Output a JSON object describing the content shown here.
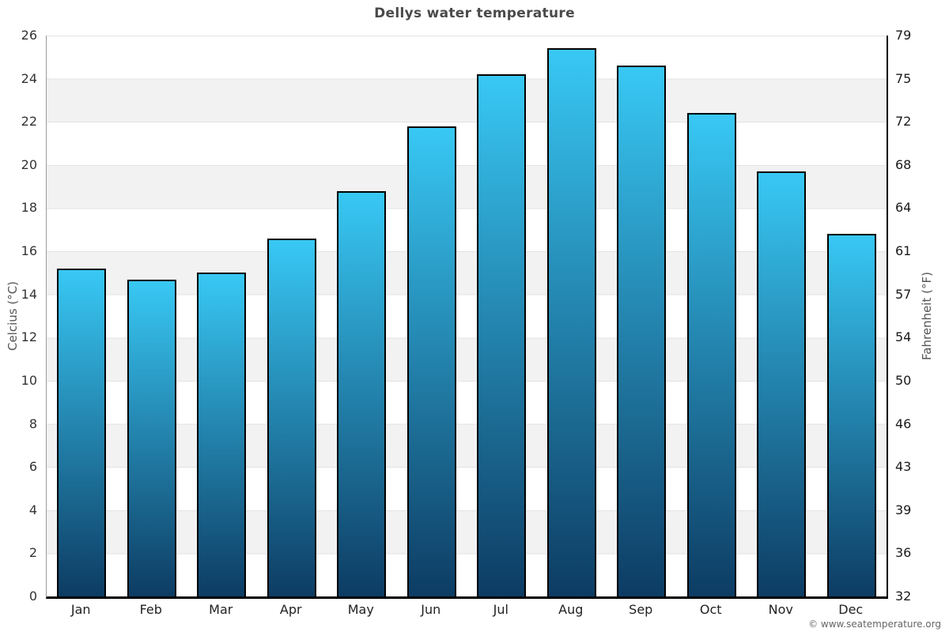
{
  "title": "Dellys water temperature",
  "footer": {
    "credit": "© www.seatemperature.org"
  },
  "chart_data": {
    "type": "bar",
    "title": "Dellys water temperature",
    "categories": [
      "Jan",
      "Feb",
      "Mar",
      "Apr",
      "May",
      "Jun",
      "Jul",
      "Aug",
      "Sep",
      "Oct",
      "Nov",
      "Dec"
    ],
    "values": [
      15.2,
      14.7,
      15.0,
      16.6,
      18.8,
      21.8,
      24.2,
      25.4,
      24.6,
      22.4,
      19.7,
      16.8
    ],
    "xlabel": "",
    "ylabel": "Celcius (°C)",
    "ylabel_right": "Fahrenheit (°F)",
    "ylim": [
      0,
      26
    ],
    "yticks_left": [
      0,
      2,
      4,
      6,
      8,
      10,
      12,
      14,
      16,
      18,
      20,
      22,
      24,
      26
    ],
    "yticks_right": [
      32,
      36,
      39,
      43,
      46,
      50,
      54,
      57,
      61,
      64,
      68,
      72,
      75,
      79
    ],
    "legend": "none",
    "grid": "alternating horizontal bands every 2 degrees C with light gridlines"
  },
  "colors": {
    "bar_gradient_top": "#38c8f4",
    "bar_gradient_bottom": "#0d3c63",
    "bar_border": "#000000",
    "band_gray": "#f2f2f2",
    "gridline": "#e3e3e3",
    "title_text": "#4a4a4a",
    "tick_text": "#333333",
    "axis_title_text": "#555555",
    "footer_text": "#666666"
  }
}
